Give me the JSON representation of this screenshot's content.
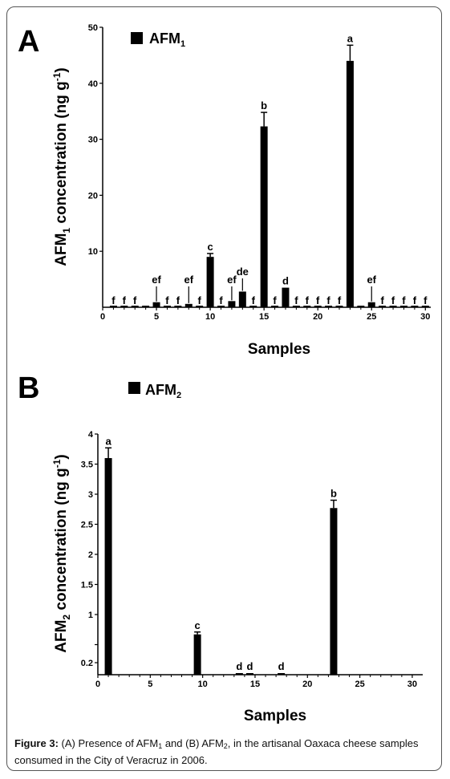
{
  "figure": {
    "caption": {
      "label": "Figure 3:",
      "parts": [
        "(A) Presence of AFM",
        "1",
        " and (B) AFM",
        "2",
        ", in the artisanal Oaxaca cheese samples consumed in the City of Veracruz in 2006."
      ]
    }
  },
  "chart_data": [
    {
      "type": "bar",
      "panel_letter": "A",
      "legend": {
        "label": "AFM",
        "subscript": "1",
        "color": "#000000"
      },
      "ylabel": {
        "pre": "AFM",
        "sub": "1",
        "post": " concentration (ng g",
        "sup": "-1",
        "close": ")"
      },
      "xlabel": "Samples",
      "ylim": [
        0,
        50
      ],
      "xlim": [
        0,
        30.5
      ],
      "yticks": [
        10,
        20,
        30,
        40,
        50
      ],
      "xticks": [
        0,
        5,
        10,
        15,
        20,
        25,
        30
      ],
      "x": [
        1,
        2,
        3,
        4,
        5,
        6,
        7,
        8,
        9,
        10,
        11,
        12,
        13,
        14,
        15,
        16,
        17,
        18,
        19,
        20,
        21,
        22,
        23,
        24,
        25,
        26,
        27,
        28,
        29,
        30
      ],
      "values": [
        0,
        0,
        0,
        0,
        0.9,
        0,
        0,
        0.6,
        0,
        9.0,
        0,
        1.1,
        2.8,
        0,
        32.3,
        0,
        3.5,
        0,
        0,
        0,
        0,
        0,
        44.0,
        0,
        0.9,
        0,
        0,
        0,
        0,
        0
      ],
      "errors": [
        0,
        0,
        0,
        0,
        0,
        0,
        0,
        0,
        0,
        0.6,
        0,
        0,
        0,
        0,
        2.5,
        0,
        0,
        0,
        0,
        0,
        0,
        0,
        2.8,
        0,
        0,
        0,
        0,
        0,
        0,
        0
      ],
      "annotations": [
        "f",
        "f",
        "f",
        "",
        "ef",
        "f",
        "f",
        "ef",
        "f",
        "c",
        "f",
        "ef",
        "de",
        "f",
        "b",
        "f",
        "d",
        "f",
        "f",
        "f",
        "f",
        "f",
        "a",
        "",
        "ef",
        "f",
        "f",
        "f",
        "f",
        "f"
      ]
    },
    {
      "type": "bar",
      "panel_letter": "B",
      "legend": {
        "label": "AFM",
        "subscript": "2",
        "color": "#000000"
      },
      "ylabel": {
        "pre": "AFM",
        "sub": "2",
        "post": " concentration (ng g",
        "sup": "-1",
        "close": ")"
      },
      "xlabel": "Samples",
      "ylim": [
        0,
        4
      ],
      "xlim": [
        0,
        31
      ],
      "yticks": [
        0.2,
        0.5,
        1,
        1.5,
        2,
        2.5,
        3,
        3.5,
        4
      ],
      "ytick_labels": [
        "0.2",
        "",
        "1",
        "1.5",
        "2",
        "2.5",
        "3",
        "3.5",
        "4"
      ],
      "xticks": [
        0,
        5,
        10,
        15,
        20,
        25,
        30
      ],
      "x": [
        1,
        9.5,
        13.5,
        14.5,
        17.5,
        22.5
      ],
      "values": [
        3.6,
        0.67,
        0.02,
        0.02,
        0.02,
        2.77
      ],
      "errors": [
        0.17,
        0.04,
        0,
        0,
        0,
        0.13
      ],
      "annotations": [
        "a",
        "c",
        "d",
        "d",
        "d",
        "b"
      ]
    }
  ]
}
